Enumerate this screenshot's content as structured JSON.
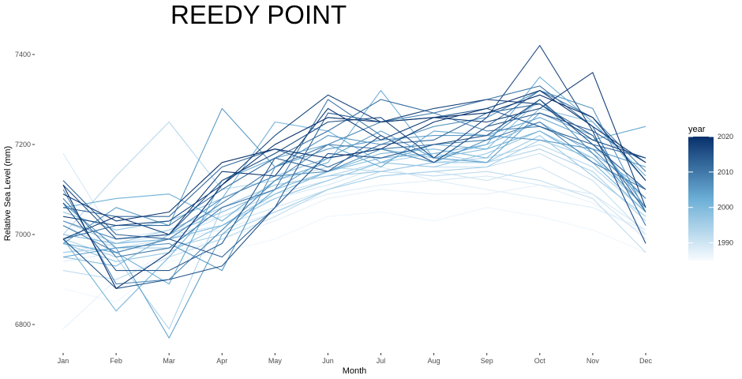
{
  "chart_data": {
    "type": "line",
    "title": "REEDY POINT",
    "xlabel": "Month",
    "ylabel": "Relative Sea Level (mm)",
    "categories": [
      "Jan",
      "Feb",
      "Mar",
      "Apr",
      "May",
      "Jun",
      "Jul",
      "Aug",
      "Sep",
      "Oct",
      "Nov",
      "Dec"
    ],
    "ylim": [
      6740,
      7440
    ],
    "yticks": [
      6800,
      7000,
      7200,
      7400
    ],
    "grid": false,
    "legend": {
      "title": "year",
      "position": "right",
      "type": "colorbar",
      "range": [
        1985,
        2020
      ],
      "ticks": [
        1990,
        2000,
        2010,
        2020
      ],
      "low_color": "#f7fbff",
      "high_color": "#08306b"
    },
    "series": [
      {
        "year": 1986,
        "values": [
          6880,
          6850,
          6940,
          6960,
          6990,
          7040,
          7050,
          7030,
          7060,
          7040,
          7010,
          6960
        ]
      },
      {
        "year": 1987,
        "values": [
          6790,
          6900,
          6960,
          6990,
          7030,
          7080,
          7100,
          7090,
          7090,
          7110,
          7070,
          7000
        ]
      },
      {
        "year": 1988,
        "values": [
          6940,
          6960,
          6990,
          7010,
          7050,
          7090,
          7110,
          7120,
          7100,
          7080,
          7060,
          7010
        ]
      },
      {
        "year": 1989,
        "values": [
          7180,
          6990,
          7010,
          7040,
          7080,
          7110,
          7150,
          7120,
          7130,
          7110,
          7090,
          7010
        ]
      },
      {
        "year": 1990,
        "values": [
          6960,
          6980,
          7000,
          7020,
          7060,
          7100,
          7130,
          7140,
          7120,
          7150,
          7090,
          6990
        ]
      },
      {
        "year": 1991,
        "values": [
          7020,
          6970,
          6990,
          7040,
          7090,
          7120,
          7160,
          7150,
          7150,
          7180,
          7120,
          7000
        ]
      },
      {
        "year": 1992,
        "values": [
          6920,
          6900,
          6950,
          6990,
          7040,
          7100,
          7140,
          7130,
          7140,
          7120,
          7080,
          6960
        ]
      },
      {
        "year": 1993,
        "values": [
          7000,
          7130,
          7250,
          7100,
          7120,
          7150,
          7140,
          7160,
          7170,
          7200,
          7150,
          7050
        ]
      },
      {
        "year": 1994,
        "values": [
          6990,
          6950,
          6790,
          7060,
          7110,
          7130,
          7160,
          7180,
          7160,
          7190,
          7140,
          7030
        ]
      },
      {
        "year": 1995,
        "values": [
          6960,
          6970,
          6970,
          7000,
          7050,
          7100,
          7130,
          7140,
          7150,
          7210,
          7170,
          7080
        ]
      },
      {
        "year": 1996,
        "values": [
          7030,
          6980,
          7010,
          7060,
          7110,
          7130,
          7140,
          7160,
          7160,
          7220,
          7130,
          7040
        ]
      },
      {
        "year": 1997,
        "values": [
          6980,
          6940,
          6960,
          7020,
          7080,
          7120,
          7160,
          7150,
          7180,
          7230,
          7170,
          7060
        ]
      },
      {
        "year": 1998,
        "values": [
          7050,
          7010,
          7030,
          7080,
          7130,
          7170,
          7190,
          7170,
          7190,
          7300,
          7200,
          7080
        ]
      },
      {
        "year": 1999,
        "values": [
          6950,
          6930,
          7000,
          7050,
          7100,
          7140,
          7170,
          7180,
          7200,
          7250,
          7180,
          7100
        ]
      },
      {
        "year": 2000,
        "values": [
          7000,
          6980,
          6990,
          7020,
          7090,
          7140,
          7180,
          7190,
          7170,
          7280,
          7250,
          7120
        ]
      },
      {
        "year": 2001,
        "values": [
          6990,
          6830,
          6950,
          7080,
          7250,
          7230,
          7160,
          7200,
          7190,
          7230,
          7160,
          7050
        ]
      },
      {
        "year": 2002,
        "values": [
          7060,
          7080,
          7090,
          7030,
          7120,
          7160,
          7320,
          7170,
          7200,
          7350,
          7250,
          7130
        ]
      },
      {
        "year": 2003,
        "values": [
          6980,
          6960,
          6890,
          7120,
          7170,
          7200,
          7150,
          7230,
          7220,
          7260,
          7210,
          7240
        ]
      },
      {
        "year": 2004,
        "values": [
          6950,
          6970,
          6770,
          7000,
          7100,
          7170,
          7230,
          7170,
          7160,
          7270,
          7220,
          7060
        ]
      },
      {
        "year": 2005,
        "values": [
          6980,
          7060,
          7020,
          7280,
          7150,
          7190,
          7210,
          7220,
          7220,
          7210,
          7190,
          7150
        ]
      },
      {
        "year": 2006,
        "values": [
          7070,
          6970,
          6980,
          6920,
          7150,
          7220,
          7200,
          7240,
          7260,
          7320,
          7280,
          7050
        ]
      },
      {
        "year": 2007,
        "values": [
          7030,
          6990,
          7000,
          7080,
          7130,
          7140,
          7190,
          7160,
          7210,
          7300,
          7180,
          7060
        ]
      },
      {
        "year": 2008,
        "values": [
          7100,
          6890,
          6900,
          7010,
          7120,
          7200,
          7250,
          7270,
          7230,
          7240,
          7190,
          7080
        ]
      },
      {
        "year": 2009,
        "values": [
          7020,
          6960,
          6990,
          7070,
          7150,
          7200,
          7190,
          7200,
          7210,
          7250,
          7160,
          7100
        ]
      },
      {
        "year": 2010,
        "values": [
          7080,
          6950,
          6970,
          7060,
          7100,
          7300,
          7220,
          7160,
          7240,
          7320,
          7260,
          7140
        ]
      },
      {
        "year": 2011,
        "values": [
          6990,
          7020,
          7020,
          7100,
          7170,
          7230,
          7300,
          7270,
          7300,
          7330,
          7240,
          7020
        ]
      },
      {
        "year": 2012,
        "values": [
          7060,
          7040,
          7040,
          7150,
          7190,
          7150,
          7200,
          7210,
          7270,
          7290,
          7220,
          7050
        ]
      },
      {
        "year": 2013,
        "values": [
          7120,
          7000,
          6990,
          6950,
          7060,
          7270,
          7250,
          7260,
          7280,
          7240,
          7200,
          7170
        ]
      },
      {
        "year": 2014,
        "values": [
          7070,
          6920,
          6920,
          6980,
          7170,
          7140,
          7220,
          7160,
          7240,
          7270,
          7230,
          7160
        ]
      },
      {
        "year": 2015,
        "values": [
          6990,
          6880,
          6900,
          6930,
          7060,
          7180,
          7170,
          7200,
          7220,
          7300,
          7200,
          7100
        ]
      },
      {
        "year": 2016,
        "values": [
          7110,
          6990,
          7000,
          7120,
          7180,
          7250,
          7260,
          7170,
          7260,
          7420,
          7230,
          6980
        ]
      },
      {
        "year": 2017,
        "values": [
          7040,
          7020,
          7030,
          7110,
          7220,
          7310,
          7250,
          7280,
          7300,
          7290,
          7210,
          7170
        ]
      },
      {
        "year": 2018,
        "values": [
          6990,
          7040,
          7000,
          7140,
          7130,
          7280,
          7210,
          7260,
          7250,
          7280,
          7360,
          7060
        ]
      },
      {
        "year": 2019,
        "values": [
          7090,
          7030,
          7050,
          7160,
          7190,
          7170,
          7190,
          7250,
          7280,
          7320,
          7240,
          7160
        ]
      },
      {
        "year": 2020,
        "values": [
          7110,
          6880,
          6960,
          7110,
          7200,
          7260,
          7250,
          7260,
          7270,
          7310,
          7260,
          7120
        ]
      }
    ]
  }
}
